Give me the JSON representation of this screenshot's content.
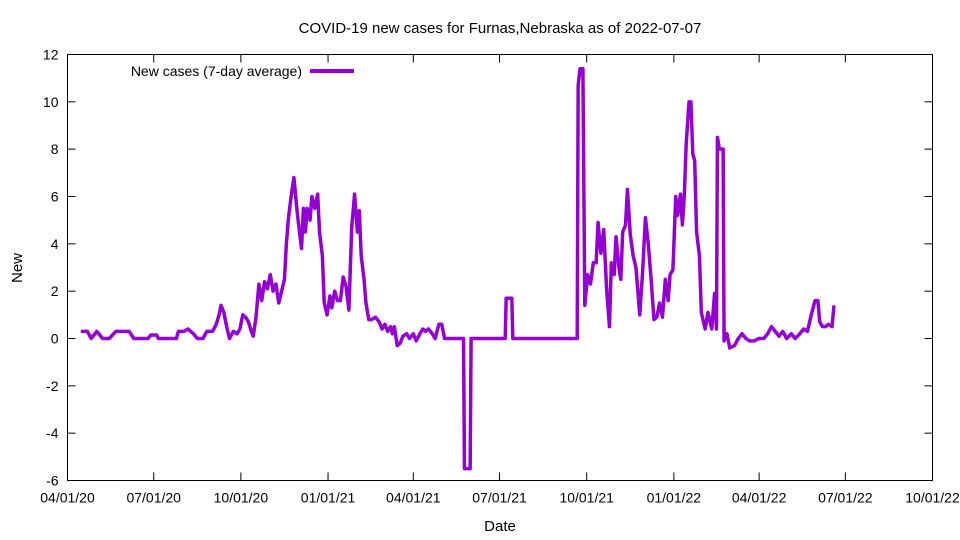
{
  "chart_data": {
    "type": "line",
    "title": "COVID-19 new cases for Furnas,Nebraska as of 2022-07-07",
    "xlabel": "Date",
    "ylabel": "New",
    "x_ticks": [
      "04/01/20",
      "07/01/20",
      "10/01/20",
      "01/01/21",
      "04/01/21",
      "07/01/21",
      "10/01/21",
      "01/01/22",
      "04/01/22",
      "07/01/22",
      "10/01/22"
    ],
    "xlim": [
      "2020-04-01",
      "2022-10-01"
    ],
    "ylim": [
      -6,
      12
    ],
    "y_ticks": [
      -6,
      -4,
      -2,
      0,
      2,
      4,
      6,
      8,
      10,
      12
    ],
    "grid": false,
    "legend_position": "top-left",
    "colors": {
      "series": "#9400d3",
      "axis": "#000000"
    },
    "series": [
      {
        "name": "New cases (7-day average)",
        "points": [
          [
            "2020-04-15",
            0.3
          ],
          [
            "2020-04-22",
            0.3
          ],
          [
            "2020-04-26",
            0.0
          ],
          [
            "2020-05-02",
            0.3
          ],
          [
            "2020-05-08",
            0.0
          ],
          [
            "2020-05-15",
            0.0
          ],
          [
            "2020-05-22",
            0.3
          ],
          [
            "2020-05-29",
            0.3
          ],
          [
            "2020-06-05",
            0.3
          ],
          [
            "2020-06-10",
            0.0
          ],
          [
            "2020-06-25",
            0.0
          ],
          [
            "2020-06-28",
            0.15
          ],
          [
            "2020-07-04",
            0.15
          ],
          [
            "2020-07-06",
            0.0
          ],
          [
            "2020-07-25",
            0.0
          ],
          [
            "2020-07-27",
            0.3
          ],
          [
            "2020-08-02",
            0.3
          ],
          [
            "2020-08-06",
            0.4
          ],
          [
            "2020-08-12",
            0.2
          ],
          [
            "2020-08-16",
            0.0
          ],
          [
            "2020-08-22",
            0.0
          ],
          [
            "2020-08-26",
            0.3
          ],
          [
            "2020-09-01",
            0.3
          ],
          [
            "2020-09-05",
            0.6
          ],
          [
            "2020-09-08",
            1.0
          ],
          [
            "2020-09-10",
            1.4
          ],
          [
            "2020-09-13",
            1.1
          ],
          [
            "2020-09-16",
            0.5
          ],
          [
            "2020-09-19",
            0.0
          ],
          [
            "2020-09-23",
            0.3
          ],
          [
            "2020-09-27",
            0.2
          ],
          [
            "2020-09-30",
            0.4
          ],
          [
            "2020-10-03",
            1.0
          ],
          [
            "2020-10-06",
            0.9
          ],
          [
            "2020-10-09",
            0.7
          ],
          [
            "2020-10-12",
            0.3
          ],
          [
            "2020-10-14",
            0.1
          ],
          [
            "2020-10-17",
            0.9
          ],
          [
            "2020-10-20",
            2.3
          ],
          [
            "2020-10-23",
            1.6
          ],
          [
            "2020-10-26",
            2.4
          ],
          [
            "2020-10-29",
            2.1
          ],
          [
            "2020-11-01",
            2.7
          ],
          [
            "2020-11-04",
            2.0
          ],
          [
            "2020-11-07",
            2.3
          ],
          [
            "2020-11-10",
            1.5
          ],
          [
            "2020-11-13",
            2.0
          ],
          [
            "2020-11-16",
            2.5
          ],
          [
            "2020-11-18",
            4.0
          ],
          [
            "2020-11-20",
            5.0
          ],
          [
            "2020-11-23",
            6.0
          ],
          [
            "2020-11-26",
            6.8
          ],
          [
            "2020-11-29",
            5.5
          ],
          [
            "2020-12-01",
            4.8
          ],
          [
            "2020-12-04",
            3.8
          ],
          [
            "2020-12-06",
            5.5
          ],
          [
            "2020-12-08",
            4.5
          ],
          [
            "2020-12-10",
            5.5
          ],
          [
            "2020-12-13",
            5.0
          ],
          [
            "2020-12-15",
            6.0
          ],
          [
            "2020-12-18",
            5.5
          ],
          [
            "2020-12-21",
            6.1
          ],
          [
            "2020-12-23",
            4.5
          ],
          [
            "2020-12-26",
            3.5
          ],
          [
            "2020-12-28",
            1.5
          ],
          [
            "2020-12-31",
            1.0
          ],
          [
            "2021-01-03",
            1.8
          ],
          [
            "2021-01-05",
            1.3
          ],
          [
            "2021-01-08",
            2.0
          ],
          [
            "2021-01-11",
            1.6
          ],
          [
            "2021-01-14",
            1.6
          ],
          [
            "2021-01-17",
            2.6
          ],
          [
            "2021-01-20",
            2.2
          ],
          [
            "2021-01-23",
            1.2
          ],
          [
            "2021-01-26",
            4.7
          ],
          [
            "2021-01-29",
            6.1
          ],
          [
            "2021-02-01",
            4.5
          ],
          [
            "2021-02-03",
            5.4
          ],
          [
            "2021-02-05",
            3.5
          ],
          [
            "2021-02-08",
            2.5
          ],
          [
            "2021-02-10",
            1.5
          ],
          [
            "2021-02-13",
            0.8
          ],
          [
            "2021-02-16",
            0.8
          ],
          [
            "2021-02-20",
            0.9
          ],
          [
            "2021-02-24",
            0.7
          ],
          [
            "2021-02-27",
            0.4
          ],
          [
            "2021-03-02",
            0.6
          ],
          [
            "2021-03-05",
            0.3
          ],
          [
            "2021-03-08",
            0.5
          ],
          [
            "2021-03-10",
            0.2
          ],
          [
            "2021-03-12",
            0.5
          ],
          [
            "2021-03-15",
            -0.3
          ],
          [
            "2021-03-18",
            -0.2
          ],
          [
            "2021-03-21",
            0.1
          ],
          [
            "2021-03-25",
            0.2
          ],
          [
            "2021-03-28",
            0.0
          ],
          [
            "2021-04-01",
            0.2
          ],
          [
            "2021-04-04",
            -0.1
          ],
          [
            "2021-04-08",
            0.2
          ],
          [
            "2021-04-11",
            0.4
          ],
          [
            "2021-04-14",
            0.3
          ],
          [
            "2021-04-17",
            0.4
          ],
          [
            "2021-04-21",
            0.2
          ],
          [
            "2021-04-24",
            0.0
          ],
          [
            "2021-04-28",
            0.6
          ],
          [
            "2021-05-01",
            0.6
          ],
          [
            "2021-05-04",
            0.0
          ],
          [
            "2021-05-24",
            0.0
          ],
          [
            "2021-05-25",
            -5.5
          ],
          [
            "2021-05-31",
            -5.5
          ],
          [
            "2021-06-01",
            0.0
          ],
          [
            "2021-07-07",
            0.0
          ],
          [
            "2021-07-08",
            1.7
          ],
          [
            "2021-07-14",
            1.7
          ],
          [
            "2021-07-15",
            0.0
          ],
          [
            "2021-09-21",
            0.0
          ],
          [
            "2021-09-22",
            10.7
          ],
          [
            "2021-09-24",
            11.4
          ],
          [
            "2021-09-27",
            11.4
          ],
          [
            "2021-09-29",
            1.4
          ],
          [
            "2021-10-02",
            2.7
          ],
          [
            "2021-10-05",
            2.3
          ],
          [
            "2021-10-08",
            3.2
          ],
          [
            "2021-10-11",
            3.2
          ],
          [
            "2021-10-13",
            4.9
          ],
          [
            "2021-10-16",
            3.6
          ],
          [
            "2021-10-19",
            4.6
          ],
          [
            "2021-10-22",
            2.1
          ],
          [
            "2021-10-25",
            0.5
          ],
          [
            "2021-10-27",
            3.2
          ],
          [
            "2021-10-30",
            2.7
          ],
          [
            "2021-11-01",
            4.3
          ],
          [
            "2021-11-04",
            3.0
          ],
          [
            "2021-11-06",
            2.5
          ],
          [
            "2021-11-08",
            4.5
          ],
          [
            "2021-11-11",
            4.8
          ],
          [
            "2021-11-13",
            6.3
          ],
          [
            "2021-11-16",
            4.4
          ],
          [
            "2021-11-19",
            3.5
          ],
          [
            "2021-11-22",
            3.0
          ],
          [
            "2021-11-24",
            2.0
          ],
          [
            "2021-11-26",
            1.0
          ],
          [
            "2021-11-29",
            2.8
          ],
          [
            "2021-12-02",
            5.1
          ],
          [
            "2021-12-05",
            4.0
          ],
          [
            "2021-12-08",
            2.5
          ],
          [
            "2021-12-11",
            0.8
          ],
          [
            "2021-12-14",
            0.9
          ],
          [
            "2021-12-17",
            1.5
          ],
          [
            "2021-12-20",
            0.9
          ],
          [
            "2021-12-23",
            2.5
          ],
          [
            "2021-12-26",
            1.6
          ],
          [
            "2021-12-28",
            2.7
          ],
          [
            "2021-12-31",
            2.9
          ],
          [
            "2022-01-03",
            6.0
          ],
          [
            "2022-01-05",
            5.2
          ],
          [
            "2022-01-08",
            6.1
          ],
          [
            "2022-01-10",
            4.8
          ],
          [
            "2022-01-12",
            6.0
          ],
          [
            "2022-01-14",
            8.2
          ],
          [
            "2022-01-17",
            10.0
          ],
          [
            "2022-01-19",
            10.0
          ],
          [
            "2022-01-21",
            7.8
          ],
          [
            "2022-01-23",
            7.5
          ],
          [
            "2022-01-25",
            4.5
          ],
          [
            "2022-01-28",
            3.5
          ],
          [
            "2022-01-30",
            1.1
          ],
          [
            "2022-02-03",
            0.4
          ],
          [
            "2022-02-06",
            1.1
          ],
          [
            "2022-02-10",
            0.4
          ],
          [
            "2022-02-13",
            1.9
          ],
          [
            "2022-02-15",
            0.4
          ],
          [
            "2022-02-16",
            8.5
          ],
          [
            "2022-02-18",
            8.0
          ],
          [
            "2022-02-22",
            8.0
          ],
          [
            "2022-02-23",
            -0.1
          ],
          [
            "2022-02-26",
            0.2
          ],
          [
            "2022-03-01",
            -0.4
          ],
          [
            "2022-03-06",
            -0.3
          ],
          [
            "2022-03-10",
            0.0
          ],
          [
            "2022-03-14",
            0.2
          ],
          [
            "2022-03-18",
            0.0
          ],
          [
            "2022-03-22",
            -0.1
          ],
          [
            "2022-03-27",
            -0.1
          ],
          [
            "2022-04-01",
            0.0
          ],
          [
            "2022-04-06",
            0.0
          ],
          [
            "2022-04-10",
            0.2
          ],
          [
            "2022-04-14",
            0.5
          ],
          [
            "2022-04-18",
            0.3
          ],
          [
            "2022-04-22",
            0.1
          ],
          [
            "2022-04-26",
            0.3
          ],
          [
            "2022-04-30",
            0.0
          ],
          [
            "2022-05-05",
            0.2
          ],
          [
            "2022-05-09",
            0.0
          ],
          [
            "2022-05-14",
            0.2
          ],
          [
            "2022-05-18",
            0.4
          ],
          [
            "2022-05-22",
            0.3
          ],
          [
            "2022-05-26",
            1.0
          ],
          [
            "2022-05-30",
            1.6
          ],
          [
            "2022-06-02",
            1.6
          ],
          [
            "2022-06-04",
            0.7
          ],
          [
            "2022-06-07",
            0.5
          ],
          [
            "2022-06-10",
            0.5
          ],
          [
            "2022-06-13",
            0.6
          ],
          [
            "2022-06-17",
            0.5
          ],
          [
            "2022-06-19",
            1.4
          ]
        ]
      }
    ]
  }
}
